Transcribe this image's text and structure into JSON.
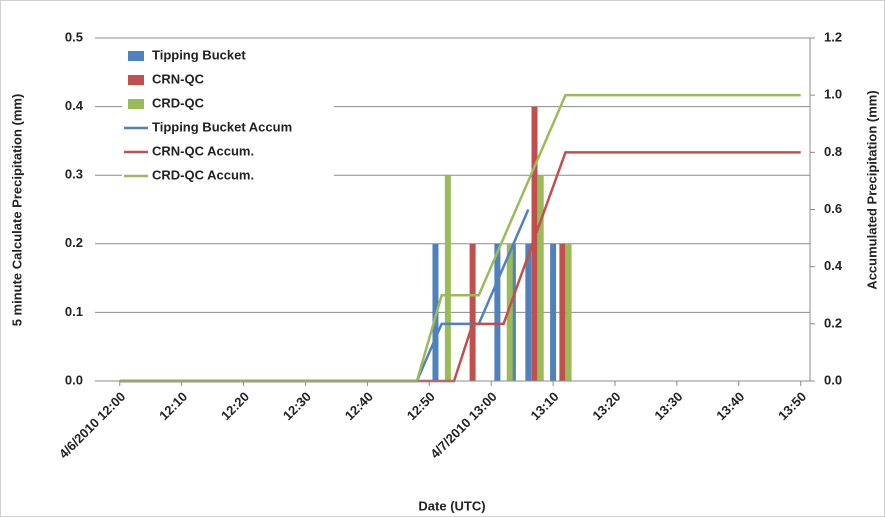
{
  "chart_data": {
    "type": "combo",
    "x_label": "Date (UTC)",
    "y_label": "5 minute Calculate Precipitation (mm)",
    "y2_label": "Accumulated Precipitation (mm)",
    "xlim": [
      -4,
      111.5
    ],
    "xticks": [
      {
        "value": 0,
        "label": "4/6/2010 12:00"
      },
      {
        "value": 10,
        "label": "12:10"
      },
      {
        "value": 20,
        "label": "12:20"
      },
      {
        "value": 30,
        "label": "12:30"
      },
      {
        "value": 40,
        "label": "12:40"
      },
      {
        "value": 50,
        "label": "12:50"
      },
      {
        "value": 60,
        "label": "4/7/2010 13:00"
      },
      {
        "value": 70,
        "label": "13:10"
      },
      {
        "value": 80,
        "label": "13:20"
      },
      {
        "value": 90,
        "label": "13:30"
      },
      {
        "value": 100,
        "label": "13:40"
      },
      {
        "value": 110,
        "label": "13:50"
      }
    ],
    "ylim": [
      0,
      0.5
    ],
    "yticks": [
      {
        "value": 0,
        "label": "0.0"
      },
      0.1,
      0.2,
      0.3,
      0.4,
      0.5
    ],
    "y2lim": [
      0,
      1.2
    ],
    "y2ticks": [
      {
        "value": 0,
        "label": "0.0"
      },
      0.2,
      0.4,
      0.6,
      0.8,
      {
        "value": 1,
        "label": "1.0"
      },
      1.2
    ],
    "grid": true,
    "legend": "top-left",
    "series": [
      {
        "name": "Tipping Bucket",
        "type": "bar",
        "color": "#4f81bd",
        "x": [
          51,
          61,
          63.5,
          66,
          70
        ],
        "values": [
          0.2,
          0.2,
          0.2,
          0.2,
          0.2
        ]
      },
      {
        "name": "CRN-QC",
        "type": "bar",
        "color": "#c0504d",
        "x": [
          57,
          67,
          71.5
        ],
        "values": [
          0.2,
          0.4,
          0.2
        ]
      },
      {
        "name": "CRD-QC",
        "type": "bar",
        "color": "#9bbb59",
        "x": [
          53,
          63,
          68,
          72.5
        ],
        "values": [
          0.3,
          0.2,
          0.3,
          0.2
        ]
      },
      {
        "name": "Tipping Bucket Accum",
        "type": "line",
        "axis": "y2",
        "color": "#4f81bd",
        "x": [
          0,
          48,
          52,
          58,
          66
        ],
        "values": [
          0,
          0,
          0.2,
          0.2,
          0.6
        ]
      },
      {
        "name": "CRN-QC Accum.",
        "type": "line",
        "axis": "y2",
        "color": "#c0504d",
        "x": [
          0,
          54,
          57,
          62,
          72,
          110
        ],
        "values": [
          0,
          0,
          0.2,
          0.2,
          0.8,
          0.8
        ]
      },
      {
        "name": "CRD-QC Accum.",
        "type": "line",
        "axis": "y2",
        "color": "#9bbb59",
        "x": [
          0,
          48,
          52,
          58,
          72,
          110
        ],
        "values": [
          0,
          0,
          0.3,
          0.3,
          1,
          1
        ]
      }
    ]
  }
}
